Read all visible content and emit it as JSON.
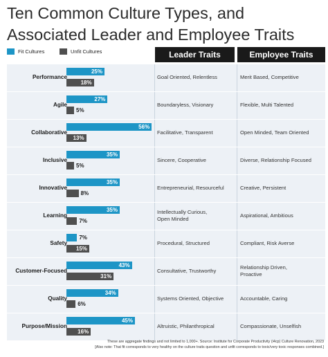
{
  "title_line1": "Ten Common Culture Types, and",
  "title_line2": "Associated Leader and Employee Traits",
  "legend": {
    "fit": "Fit Cultures",
    "unfit": "Unfit Cultures"
  },
  "columns": {
    "leader": "Leader Traits",
    "employee": "Employee Traits"
  },
  "colors": {
    "fit": "#1d95c6",
    "unfit": "#4f4f4f",
    "header_bg": "#1a1a1a",
    "row_bg": "#edf1f6"
  },
  "chart_data": {
    "type": "bar",
    "orientation": "horizontal",
    "title": "Ten Common Culture Types, and Associated Leader and Employee Traits",
    "categories": [
      "Performance",
      "Agile",
      "Collaborative",
      "Inclusive",
      "Innovative",
      "Learning",
      "Safety",
      "Customer-Focused",
      "Quality",
      "Purpose/Mission"
    ],
    "series": [
      {
        "name": "Fit Cultures",
        "values": [
          25,
          27,
          56,
          35,
          35,
          35,
          7,
          43,
          34,
          45
        ],
        "labels": [
          "25%",
          "27%",
          "56%",
          "35%",
          "35%",
          "35%",
          "7%",
          "43%",
          "34%",
          "45%"
        ]
      },
      {
        "name": "Unfit Cultures",
        "values": [
          18,
          5,
          13,
          5,
          8,
          7,
          15,
          31,
          6,
          16
        ],
        "labels": [
          "18%",
          "5%",
          "13%",
          "5%",
          "8%",
          "7%",
          "15%",
          "31%",
          "6%",
          "16%"
        ]
      }
    ],
    "value_unit": "%",
    "leader_traits": [
      [
        "Goal Oriented, Relentless"
      ],
      [
        "Boundaryless, Visionary"
      ],
      [
        "Facilitative, Transparent"
      ],
      [
        "Sincere, Cooperative"
      ],
      [
        "Entrepreneurial, Resourceful"
      ],
      [
        "Intellectually Curious,",
        "Open Minded"
      ],
      [
        "Procedural, Structured"
      ],
      [
        "Consultative, Trustworthy"
      ],
      [
        "Systems Oriented, Objective"
      ],
      [
        "Altruistic, Philanthropical"
      ]
    ],
    "employee_traits": [
      [
        "Merit Based, Competitive"
      ],
      [
        "Flexible, Multi Talented"
      ],
      [
        "Open Minded, Team Oriented"
      ],
      [
        "Diverse, Relationship Focused"
      ],
      [
        "Creative, Persistent"
      ],
      [
        "Aspirational, Ambitious"
      ],
      [
        "Compliant, Risk Averse"
      ],
      [
        "Relationship Driven,",
        "Proactive"
      ],
      [
        "Accountable, Caring"
      ],
      [
        "Compassionate, Unselfish"
      ]
    ]
  },
  "footnote_line1": "These are aggregate findings and not limited to 1,000+. Source: Institute for Corporate Productivity (i4cp) Culture Renovation, 2023",
  "footnote_line2": "[Also note: That fit corresponds to very healthy on the culture traits question and unfit corresponds to toxic/very toxic responses combined.]"
}
